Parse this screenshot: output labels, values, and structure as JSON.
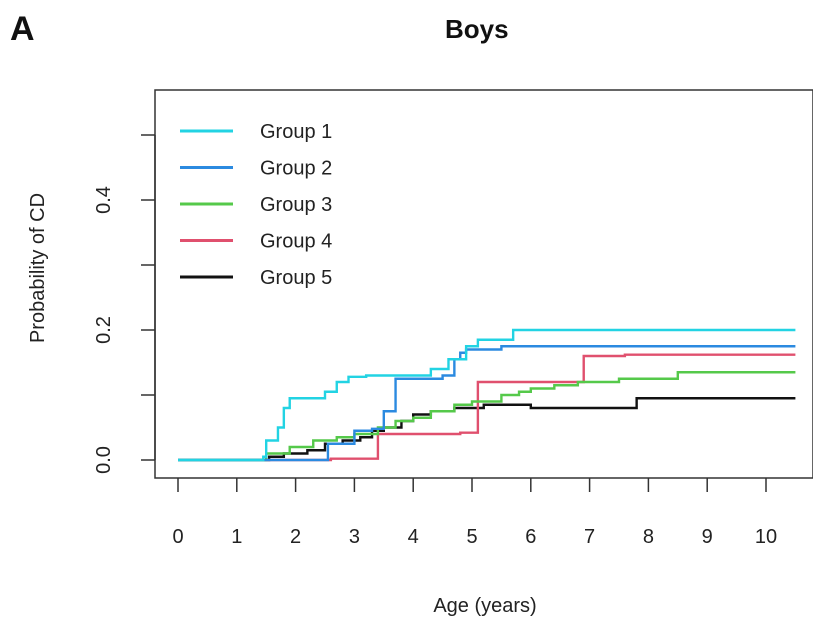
{
  "panel_label": "A",
  "chart_data": {
    "type": "line",
    "step": true,
    "title": "Boys",
    "xlabel": "Age (years)",
    "ylabel": "Probability of CD",
    "xlim": [
      0,
      10.5
    ],
    "ylim": [
      0,
      0.5
    ],
    "x_ticks": [
      "0",
      "1",
      "2",
      "3",
      "4",
      "5",
      "6",
      "7",
      "8",
      "9",
      "10"
    ],
    "y_ticks": [
      {
        "value": 0.0,
        "label": "0.0"
      },
      {
        "value": 0.1,
        "label": ""
      },
      {
        "value": 0.2,
        "label": "0.2"
      },
      {
        "value": 0.3,
        "label": ""
      },
      {
        "value": 0.4,
        "label": "0.4"
      },
      {
        "value": 0.5,
        "label": ""
      }
    ],
    "legend_position": "top-left",
    "series": [
      {
        "name": "Group 1",
        "color": "#22d3e3",
        "x": [
          0,
          1.45,
          1.5,
          1.7,
          1.8,
          1.9,
          2.5,
          2.7,
          2.9,
          3.2,
          4.3,
          4.6,
          4.9,
          5.1,
          5.7,
          10.5
        ],
        "y": [
          0,
          0.005,
          0.03,
          0.05,
          0.08,
          0.095,
          0.105,
          0.12,
          0.128,
          0.13,
          0.14,
          0.155,
          0.175,
          0.185,
          0.2,
          0.2
        ]
      },
      {
        "name": "Group 2",
        "color": "#2b8ae0",
        "x": [
          0,
          2.55,
          3.0,
          3.3,
          3.5,
          3.7,
          4.5,
          4.7,
          4.8,
          4.9,
          5.5,
          10.5
        ],
        "y": [
          0,
          0.025,
          0.045,
          0.048,
          0.075,
          0.125,
          0.13,
          0.155,
          0.165,
          0.17,
          0.175,
          0.175
        ]
      },
      {
        "name": "Group 3",
        "color": "#55c94a",
        "x": [
          0,
          1.5,
          1.9,
          2.3,
          2.7,
          3.0,
          3.4,
          3.7,
          4.0,
          4.3,
          4.7,
          5.0,
          5.5,
          5.8,
          6.0,
          6.4,
          6.8,
          7.5,
          8.5,
          10.5
        ],
        "y": [
          0,
          0.01,
          0.02,
          0.03,
          0.035,
          0.04,
          0.05,
          0.06,
          0.065,
          0.075,
          0.085,
          0.09,
          0.1,
          0.105,
          0.11,
          0.115,
          0.12,
          0.125,
          0.135,
          0.135
        ]
      },
      {
        "name": "Group 4",
        "color": "#e0506e",
        "x": [
          0,
          2.6,
          3.4,
          4.8,
          5.1,
          6.9,
          7.6,
          10.5
        ],
        "y": [
          0,
          0.002,
          0.04,
          0.042,
          0.12,
          0.16,
          0.162,
          0.162
        ]
      },
      {
        "name": "Group 5",
        "color": "#111111",
        "x": [
          0,
          1.55,
          1.8,
          2.2,
          2.5,
          2.8,
          3.1,
          3.3,
          3.5,
          3.8,
          4.0,
          4.3,
          4.7,
          5.2,
          6.0,
          7.8,
          10.5
        ],
        "y": [
          0,
          0.005,
          0.01,
          0.015,
          0.025,
          0.03,
          0.035,
          0.045,
          0.05,
          0.06,
          0.07,
          0.075,
          0.08,
          0.085,
          0.08,
          0.095,
          0.095
        ]
      }
    ]
  }
}
